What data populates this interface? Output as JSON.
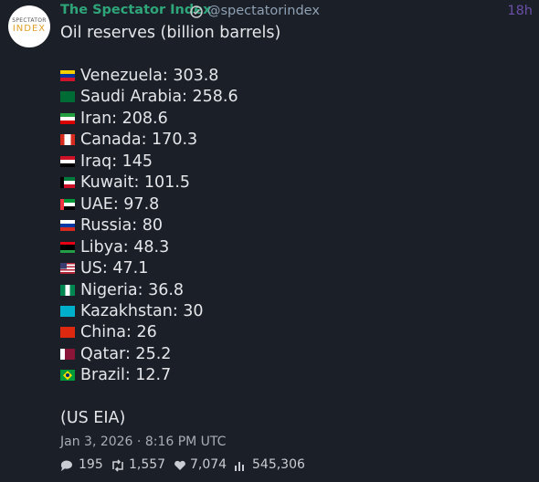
{
  "avatar": {
    "line1": "SPECTATOR",
    "line2": "INDEX"
  },
  "header": {
    "name": "The Spectator Index",
    "handle": "@spectatorindex",
    "time": "18h"
  },
  "tweet": {
    "title": "Oil reserves (billion barrels)",
    "rows": [
      "Venezuela: 303.8",
      "Saudi Arabia: 258.6",
      "Iran: 208.6",
      "Canada: 170.3",
      "Iraq: 145",
      "Kuwait: 101.5",
      "UAE: 97.8",
      "Russia: 80",
      "Libya: 48.3",
      "US: 47.1",
      "Nigeria: 36.8",
      "Kazakhstan: 30",
      "China: 26",
      "Qatar: 25.2",
      "Brazil: 12.7"
    ],
    "source": "(US EIA)",
    "date": "Jan 3, 2026 · 8:16 PM UTC"
  },
  "stats": {
    "replies": "195",
    "retweets": "1,557",
    "likes": "7,074",
    "views": "545,306"
  }
}
